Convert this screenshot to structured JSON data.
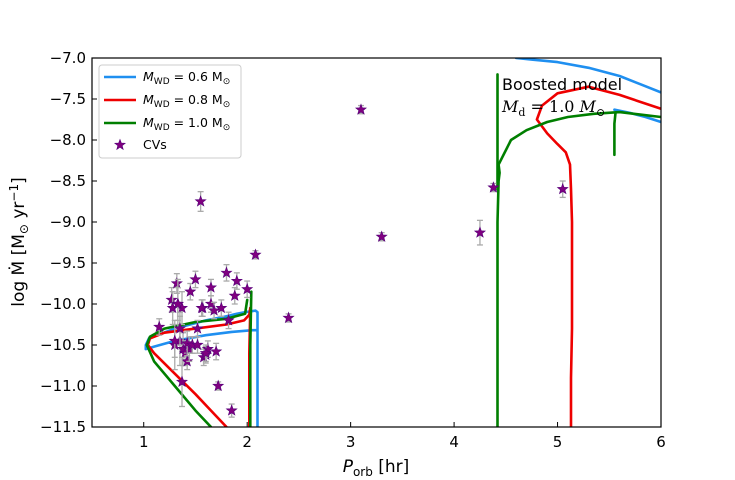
{
  "chart_data": {
    "type": "line",
    "title": "",
    "xlabel": "P_orb [hr]",
    "ylabel": "log Ṁ [M⊙ yr⁻¹]",
    "xlim": [
      0.5,
      6.0
    ],
    "ylim": [
      -11.5,
      -7.0
    ],
    "xticks": [
      1,
      2,
      3,
      4,
      5,
      6
    ],
    "yticks": [
      -11.5,
      -11.0,
      -10.5,
      -10.0,
      -9.5,
      -9.0,
      -8.5,
      -8.0,
      -7.5,
      -7.0
    ],
    "xtick_labels": [
      "1",
      "2",
      "3",
      "4",
      "5",
      "6"
    ],
    "ytick_labels": [
      "−11.5",
      "−11.0",
      "−10.5",
      "−10.0",
      "−9.5",
      "−9.0",
      "−8.5",
      "−8.0",
      "−7.5",
      "−7.0"
    ],
    "grid": false,
    "legend_position": "top-left",
    "legend": [
      {
        "label": "M_WD = 0.6 M⊙",
        "color": "#1f8ff0",
        "marker": "line"
      },
      {
        "label": "M_WD = 0.8 M⊙",
        "color": "#ee0000",
        "marker": "line"
      },
      {
        "label": "M_WD = 1.0 M⊙",
        "color": "#007f00",
        "marker": "line"
      },
      {
        "label": "CVs",
        "color": "#800080",
        "marker": "star"
      }
    ],
    "annotation": {
      "line1": "Boosted model",
      "line2": "M_d = 1.0 M⊙",
      "x": 4.46,
      "y": -7.32
    },
    "series": [
      {
        "name": "M_WD = 0.6 M⊙",
        "color": "#1f8ff0",
        "x": [
          2.1,
          2.1,
          2.1,
          2.08,
          1.98,
          1.9,
          1.8,
          1.6,
          1.3,
          1.05,
          1.02,
          1.02,
          1.1,
          1.3,
          1.6,
          1.85,
          2.05,
          2.1
        ],
        "y": [
          -11.5,
          -11.0,
          -10.1,
          -10.08,
          -10.1,
          -10.12,
          -10.15,
          -10.2,
          -10.3,
          -10.42,
          -10.5,
          -10.55,
          -10.52,
          -10.45,
          -10.38,
          -10.34,
          -10.32,
          -10.32
        ]
      },
      {
        "name": "M_WD = 0.6 M⊙",
        "color": "#1f8ff0",
        "x": [
          4.6,
          4.75,
          5.0,
          5.3,
          5.6,
          5.8,
          6.0
        ],
        "y": [
          -7.0,
          -7.02,
          -7.05,
          -7.12,
          -7.22,
          -7.32,
          -7.42
        ]
      },
      {
        "name": "M_WD = 0.6 M⊙",
        "color": "#1f8ff0",
        "x": [
          5.55,
          5.7,
          5.85,
          6.0
        ],
        "y": [
          -7.63,
          -7.67,
          -7.72,
          -7.78
        ]
      },
      {
        "name": "M_WD = 0.8 M⊙",
        "color": "#ee0000",
        "x": [
          1.8,
          1.65,
          1.5,
          1.3,
          1.1,
          1.04,
          1.06,
          1.2,
          1.5,
          1.8,
          1.97,
          2.02,
          2.03
        ],
        "y": [
          -11.5,
          -11.3,
          -11.1,
          -10.85,
          -10.6,
          -10.5,
          -10.42,
          -10.35,
          -10.3,
          -10.25,
          -10.2,
          -10.13,
          -10.05
        ]
      },
      {
        "name": "M_WD = 0.8 M⊙",
        "color": "#ee0000",
        "x": [
          2.02,
          2.02,
          2.03
        ],
        "y": [
          -11.5,
          -10.6,
          -10.05
        ]
      },
      {
        "name": "M_WD = 0.8 M⊙",
        "color": "#ee0000",
        "x": [
          5.13,
          5.13,
          5.14,
          5.14,
          5.13,
          5.12,
          5.08,
          5.0,
          4.9,
          4.8,
          4.85,
          5.0,
          5.3,
          5.6,
          6.0
        ],
        "y": [
          -11.5,
          -10.9,
          -10.3,
          -9.0,
          -8.6,
          -8.3,
          -8.15,
          -8.05,
          -7.92,
          -7.75,
          -7.58,
          -7.43,
          -7.35,
          -7.45,
          -7.62
        ]
      },
      {
        "name": "M_WD = 1.0 M⊙",
        "color": "#007f00",
        "x": [
          1.65,
          1.5,
          1.3,
          1.1,
          1.03,
          1.06,
          1.2,
          1.5,
          1.8,
          1.98,
          2.0
        ],
        "y": [
          -11.5,
          -11.3,
          -11.0,
          -10.7,
          -10.5,
          -10.4,
          -10.3,
          -10.22,
          -10.18,
          -10.12,
          -9.95
        ]
      },
      {
        "name": "M_WD = 1.0 M⊙",
        "color": "#007f00",
        "x": [
          2.03,
          2.03,
          2.04
        ],
        "y": [
          -11.5,
          -10.5,
          -9.85
        ]
      },
      {
        "name": "M_WD = 1.0 M⊙",
        "color": "#007f00",
        "x": [
          4.42,
          4.42,
          4.43,
          4.44,
          4.43,
          4.47,
          4.55,
          4.7,
          4.9,
          5.1,
          5.35,
          5.6,
          5.8,
          6.0
        ],
        "y": [
          -11.5,
          -9.0,
          -8.5,
          -8.4,
          -8.3,
          -8.2,
          -8.0,
          -7.88,
          -7.78,
          -7.72,
          -7.68,
          -7.66,
          -7.69,
          -7.72
        ]
      },
      {
        "name": "M_WD = 1.0 M⊙",
        "color": "#007f00",
        "x": [
          4.42,
          4.42
        ],
        "y": [
          -8.6,
          -7.2
        ]
      },
      {
        "name": "M_WD = 1.0 M⊙",
        "color": "#007f00",
        "x": [
          5.55,
          5.55,
          5.56
        ],
        "y": [
          -8.18,
          -7.8,
          -7.67
        ]
      }
    ],
    "cvs": {
      "name": "CVs",
      "color": "#800080",
      "x": [
        1.15,
        1.27,
        1.28,
        1.3,
        1.32,
        1.33,
        1.35,
        1.37,
        1.38,
        1.4,
        1.42,
        1.44,
        1.45,
        1.47,
        1.5,
        1.52,
        1.55,
        1.57,
        1.58,
        1.6,
        1.62,
        1.65,
        1.68,
        1.7,
        1.72,
        1.75,
        1.8,
        1.82,
        1.85,
        1.88,
        1.9,
        2.0,
        2.08,
        2.4,
        3.1,
        3.3,
        4.25,
        4.38,
        5.05,
        1.3,
        1.33,
        1.37,
        1.42,
        1.47,
        1.52,
        1.56,
        1.6,
        1.65,
        1.35
      ],
      "y": [
        -10.28,
        -9.95,
        -10.05,
        -10.5,
        -9.75,
        -10.0,
        -10.45,
        -10.05,
        -10.55,
        -10.6,
        -10.7,
        -10.55,
        -9.85,
        -10.5,
        -9.7,
        -10.3,
        -8.75,
        -10.05,
        -10.65,
        -10.62,
        -10.55,
        -10.0,
        -10.08,
        -10.58,
        -11.0,
        -10.05,
        -9.62,
        -10.2,
        -11.3,
        -9.9,
        -9.72,
        -9.82,
        -9.4,
        -10.17,
        -7.63,
        -9.18,
        -9.13,
        -8.58,
        -8.6,
        -10.45,
        -10.0,
        -10.95,
        -10.48,
        -10.5,
        -10.5,
        -10.05,
        -10.6,
        -9.8,
        -10.3
      ],
      "yerr": [
        0.1,
        0.15,
        0.2,
        0.3,
        0.12,
        0.3,
        0.3,
        0.2,
        0.2,
        0.15,
        0.1,
        0.15,
        0.1,
        0.1,
        0.1,
        0.1,
        0.12,
        0.1,
        0.1,
        0.1,
        0.1,
        0.1,
        0.1,
        0.1,
        0.05,
        0.1,
        0.1,
        0.1,
        0.08,
        0.1,
        0.1,
        0.1,
        0.05,
        0.05,
        0.05,
        0.05,
        0.15,
        0.05,
        0.1,
        0.2,
        0.2,
        0.3,
        0.15,
        0.1,
        0.1,
        0.1,
        0.1,
        0.1,
        0.2
      ]
    }
  }
}
